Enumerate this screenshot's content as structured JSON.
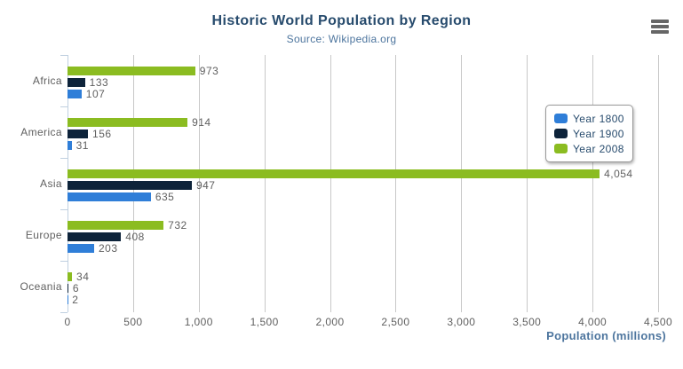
{
  "chart_data": {
    "type": "bar",
    "orientation": "horizontal",
    "title": "Historic World Population by Region",
    "subtitle": "Source: Wikipedia.org",
    "categories": [
      "Africa",
      "America",
      "Asia",
      "Europe",
      "Oceania"
    ],
    "series": [
      {
        "name": "Year 1800",
        "color": "#2f7ed8",
        "values": [
          107,
          31,
          635,
          203,
          2
        ]
      },
      {
        "name": "Year 1900",
        "color": "#0d233a",
        "values": [
          133,
          156,
          947,
          408,
          6
        ]
      },
      {
        "name": "Year 2008",
        "color": "#8bbc21",
        "values": [
          973,
          914,
          4054,
          732,
          34
        ]
      }
    ],
    "bar_display_order_top_to_bottom": [
      "Year 2008",
      "Year 1900",
      "Year 1800"
    ],
    "data_labels": true,
    "xlabel": "Population (millions)",
    "xlim": [
      0,
      4500
    ],
    "xticks": [
      0,
      500,
      1000,
      1500,
      2000,
      2500,
      3000,
      3500,
      4000,
      4500
    ],
    "grid": true,
    "legend": {
      "entries": [
        "Year 1800",
        "Year 1900",
        "Year 2008"
      ],
      "position": "right-overlay"
    }
  },
  "icons": {
    "menu": "hamburger-icon"
  },
  "colors": {
    "title": "#274b6d",
    "subtitle": "#4d759e",
    "axis_label": "#606060",
    "data_label": "#606060",
    "axis_title": "#4d759e",
    "grid_line": "#c8c8c8",
    "axis_line": "#c0d0e0",
    "legend_border": "#999999",
    "legend_text": "#274b6d",
    "menu_icon": "#666666",
    "background": "#ffffff"
  }
}
